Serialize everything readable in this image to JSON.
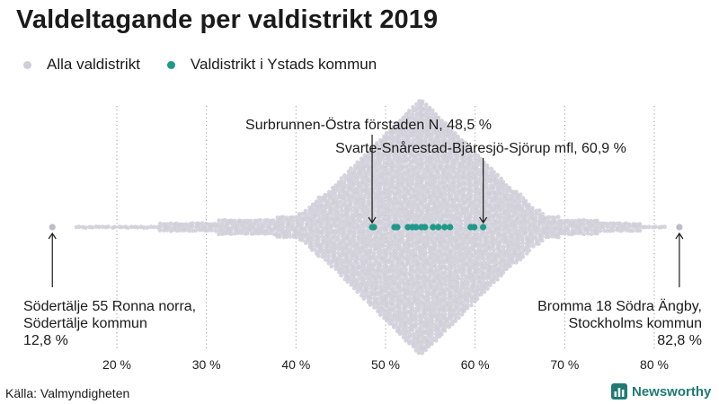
{
  "title": "Valdeltagande per valdistrikt 2019",
  "legend": {
    "all": {
      "label": "Alla valdistrikt",
      "color": "#cfced8"
    },
    "ystad": {
      "label": "Valdistrikt i Ystads kommun",
      "color": "#1f9a8a"
    }
  },
  "source": "Källa: Valmyndigheten",
  "brand": {
    "name": "Newsworthy",
    "icon": "bar-chart-icon",
    "color": "#1f7a72"
  },
  "chart_data": {
    "type": "scatter",
    "x_range": [
      13,
      86
    ],
    "x_ticks": [
      20,
      30,
      40,
      50,
      60,
      70,
      80
    ],
    "x_tick_labels": [
      "20 %",
      "30 %",
      "40 %",
      "50 %",
      "60 %",
      "70 %",
      "80 %"
    ],
    "grid": "vertical dotted",
    "legend_position": "top-left",
    "series": [
      {
        "name": "Alla valdistrikt",
        "color": "#cfced8",
        "distribution": {
          "min": 12.8,
          "max": 82.8,
          "center": 54
        }
      },
      {
        "name": "Valdistrikt i Ystads kommun",
        "color": "#1f9a8a",
        "values": [
          48.5,
          48.7,
          51.0,
          51.3,
          52.5,
          53.0,
          53.4,
          54.0,
          54.4,
          55.3,
          55.9,
          56.6,
          57.2,
          59.5,
          59.9,
          60.9
        ]
      }
    ],
    "annotations": [
      {
        "id": "min",
        "x": 12.8,
        "lines": [
          "Södertälje 55 Ronna norra,",
          "Södertälje kommun",
          "12,8 %"
        ],
        "align": "left"
      },
      {
        "id": "max",
        "x": 82.8,
        "lines": [
          "Bromma 18 Södra Ängby,",
          "Stockholms kommun",
          "82,8 %"
        ],
        "align": "right"
      },
      {
        "id": "ystad-min",
        "x": 48.5,
        "lines": [
          "Surbrunnen-Östra förstaden N, 48,5 %"
        ],
        "align": "center"
      },
      {
        "id": "ystad-max",
        "x": 60.9,
        "lines": [
          "Svarte-Snårestad-Bjäresjö-Sjörup mfl, 60,9 %"
        ],
        "align": "center"
      }
    ]
  }
}
